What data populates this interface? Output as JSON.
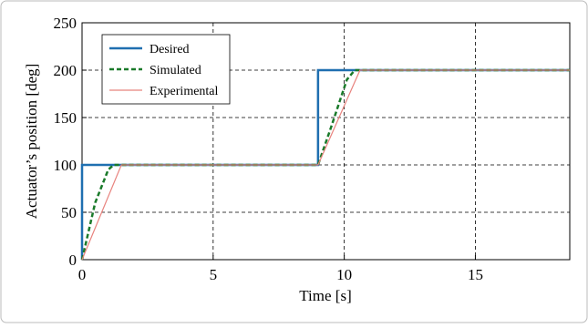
{
  "chart_data": {
    "type": "line",
    "xlabel": "Time [s]",
    "ylabel": "Actuator’s position [deg]",
    "xlim": [
      0,
      18.6
    ],
    "ylim": [
      0,
      250
    ],
    "xticks": [
      0,
      5,
      10,
      15
    ],
    "yticks": [
      0,
      50,
      100,
      150,
      200,
      250
    ],
    "grid": true,
    "legend": "upper left",
    "series": [
      {
        "name": "Desired",
        "color": "#1f6fb0",
        "width": 2.5,
        "dash": "none",
        "x": [
          0,
          0,
          9,
          9,
          18.6
        ],
        "values": [
          0,
          100,
          100,
          200,
          200
        ]
      },
      {
        "name": "Simulated",
        "color": "#1a7a2a",
        "width": 2.5,
        "dash": "5,3",
        "x": [
          0,
          0.5,
          1.0,
          1.2,
          9,
          9.5,
          10.1,
          10.4,
          18.6
        ],
        "values": [
          0,
          60,
          95,
          100,
          100,
          140,
          190,
          200,
          200
        ]
      },
      {
        "name": "Experimental",
        "color": "#e8837e",
        "width": 1.2,
        "dash": "none",
        "x": [
          0,
          1.5,
          9,
          10.6,
          18.6
        ],
        "values": [
          0,
          100,
          100,
          200,
          200
        ]
      }
    ]
  }
}
